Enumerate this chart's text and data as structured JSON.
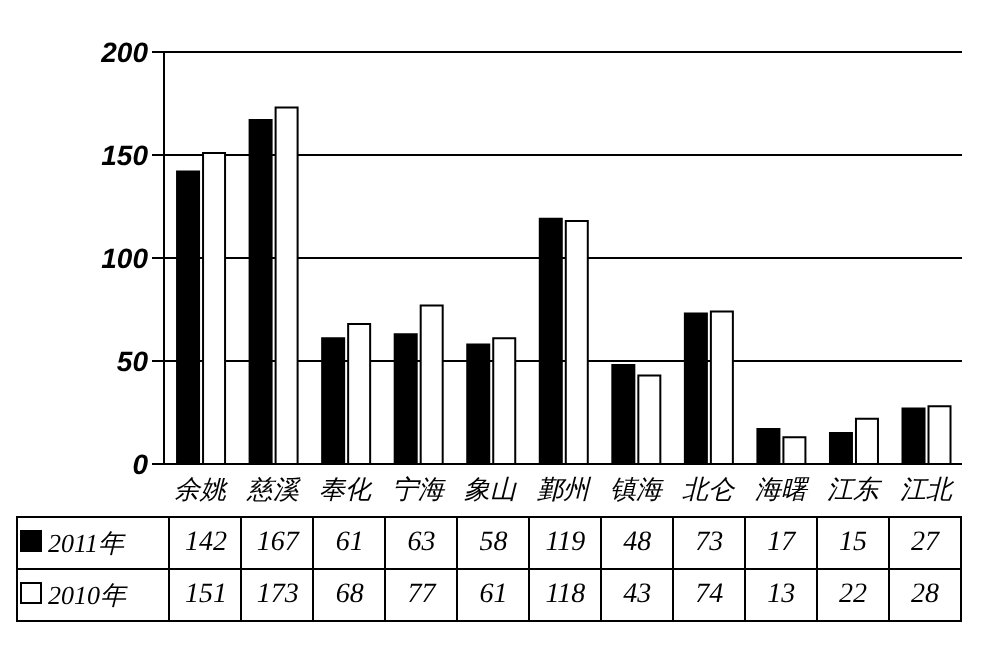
{
  "chart_data": {
    "type": "bar",
    "categories": [
      "余姚",
      "慈溪",
      "奉化",
      "宁海",
      "象山",
      "鄞州",
      "镇海",
      "北仑",
      "海曙",
      "江东",
      "江北"
    ],
    "series": [
      {
        "name": "2011年",
        "color": "#000000",
        "values": [
          142,
          167,
          61,
          63,
          58,
          119,
          48,
          73,
          17,
          15,
          27
        ]
      },
      {
        "name": "2010年",
        "color": "#ffffff",
        "values": [
          151,
          173,
          68,
          77,
          61,
          118,
          43,
          74,
          13,
          22,
          28
        ]
      }
    ],
    "ylim": [
      0,
      200
    ],
    "yticks": [
      0,
      50,
      100,
      150,
      200
    ],
    "grid": "y",
    "legend": "bottom",
    "data_labels": true
  }
}
